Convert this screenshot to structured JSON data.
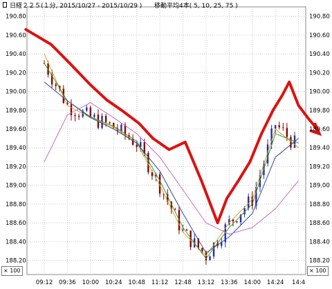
{
  "header": {
    "title": "日経２２５(１分, 2015/10/27 - 2015/10/29 )",
    "ma_label": "移動平均4本( 5, 10, 25, 75 )"
  },
  "scale_left": "× 100",
  "scale_right": "× 100",
  "colors": {
    "up": "#2a2aa8",
    "down": "#8a0000",
    "ma5": "#d4a020",
    "ma10": "#3a9a3a",
    "ma25": "#2e4a9a",
    "ma75": "#c070c0",
    "annotation": "#dd1111",
    "grid": "#c8c8c8"
  },
  "chart_data": {
    "type": "line",
    "subtype": "candlestick",
    "ylim": [
      188.05,
      190.9
    ],
    "yticks": [
      "190.80",
      "190.60",
      "190.40",
      "190.20",
      "190.00",
      "189.80",
      "189.60",
      "189.40",
      "189.20",
      "189.00",
      "188.80",
      "188.60",
      "188.40",
      "188.20"
    ],
    "xticks": [
      "09:12",
      "09:36",
      "10:00",
      "10:24",
      "10:48",
      "11:12",
      "12:48",
      "13:12",
      "13:36",
      "14:00",
      "14:24",
      "14:4"
    ],
    "series": [
      {
        "name": "5",
        "x": [
          0,
          1,
          2,
          3,
          4,
          5,
          6,
          7,
          8,
          9,
          10,
          11
        ],
        "values": [
          190.4,
          189.85,
          189.72,
          189.62,
          189.45,
          189.0,
          188.5,
          188.25,
          188.6,
          188.85,
          189.6,
          189.4
        ]
      },
      {
        "name": "10",
        "x": [
          0,
          1,
          2,
          3,
          4,
          5,
          6,
          7,
          8,
          9,
          10,
          11
        ],
        "values": [
          190.3,
          189.9,
          189.73,
          189.63,
          189.47,
          189.05,
          188.55,
          188.22,
          188.55,
          188.8,
          189.55,
          189.45
        ]
      },
      {
        "name": "25",
        "x": [
          0,
          1,
          2,
          3,
          4,
          5,
          6,
          7,
          8,
          9,
          10,
          11
        ],
        "values": [
          190.1,
          189.9,
          189.72,
          189.6,
          189.45,
          189.15,
          188.7,
          188.28,
          188.45,
          188.7,
          189.3,
          189.5
        ]
      },
      {
        "name": "75",
        "x": [
          0,
          1,
          2,
          3,
          4,
          5,
          6,
          7,
          8,
          9,
          10,
          11
        ],
        "values": [
          189.25,
          189.75,
          189.88,
          189.72,
          189.55,
          189.3,
          188.95,
          188.6,
          188.48,
          188.55,
          188.75,
          189.05
        ]
      }
    ],
    "ohlc_close": [
      190.3,
      189.85,
      189.72,
      189.62,
      189.45,
      189.0,
      188.5,
      188.25,
      188.6,
      188.85,
      189.65,
      189.4
    ],
    "annotation_arrow": {
      "x": [
        -0.8,
        0.3,
        1.1,
        2.0,
        2.7,
        3.4,
        4.1,
        4.7,
        5.4,
        6.1,
        6.8,
        7.5,
        7.9,
        8.4,
        8.9,
        9.4,
        9.9,
        10.3,
        10.6,
        11.0,
        11.4,
        11.7,
        11.9
      ],
      "y": [
        190.66,
        190.5,
        190.3,
        190.07,
        189.91,
        189.79,
        189.66,
        189.5,
        189.38,
        189.46,
        189.05,
        188.6,
        188.86,
        189.05,
        189.25,
        189.55,
        189.8,
        189.96,
        190.1,
        189.85,
        189.72,
        189.63,
        189.55
      ]
    }
  }
}
